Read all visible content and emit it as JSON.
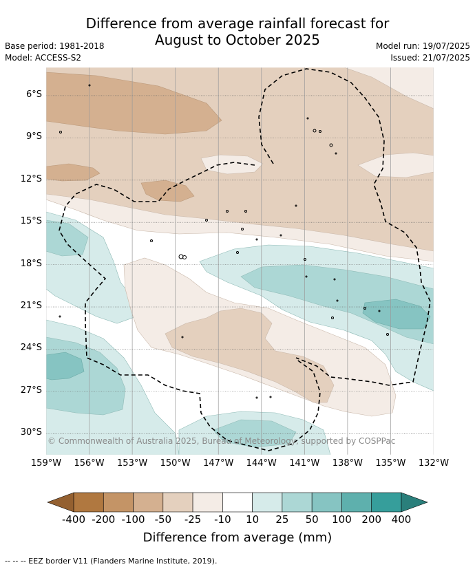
{
  "header": {
    "title_line1": "Difference from average rainfall forecast for",
    "title_line2": "August to October 2025",
    "base_period": "Base period: 1981-2018",
    "model": "Model: ACCESS-S2",
    "model_run": "Model run: 19/07/2025",
    "issued": "Issued: 21/07/2025"
  },
  "map": {
    "copyright": "© Commonwealth of Australia 2025, Bureau of Meteorology, supported by COSPPac",
    "lat_ticks": [
      "6°S",
      "9°S",
      "12°S",
      "15°S",
      "18°S",
      "21°S",
      "24°S",
      "27°S",
      "30°S"
    ],
    "lon_ticks": [
      "159°W",
      "156°W",
      "153°W",
      "150°W",
      "147°W",
      "144°W",
      "141°W",
      "138°W",
      "135°W",
      "132°W"
    ],
    "extent": {
      "lon_west": -159,
      "lon_east": -132,
      "lat_north": -4,
      "lat_south": -31.5
    },
    "border_color": "#000000",
    "grid_color": "#9a9a9a"
  },
  "colorbar": {
    "title": "Difference from average (mm)",
    "labels": [
      "-400",
      "-200",
      "-100",
      "-50",
      "-25",
      "-10",
      "10",
      "25",
      "50",
      "100",
      "200",
      "400"
    ],
    "colors": [
      "#b07840",
      "#c49466",
      "#d4b090",
      "#e4d0be",
      "#f4ece6",
      "#ffffff",
      "#d6ebea",
      "#acd7d5",
      "#86c4c2",
      "#5eb0ad",
      "#369e9b"
    ],
    "extend_low_color": "#946030",
    "extend_high_color": "#2a7f7b"
  },
  "legend": {
    "eez_text": "--  --  -- EEZ border V11 (Flanders Marine Institute, 2019)."
  }
}
